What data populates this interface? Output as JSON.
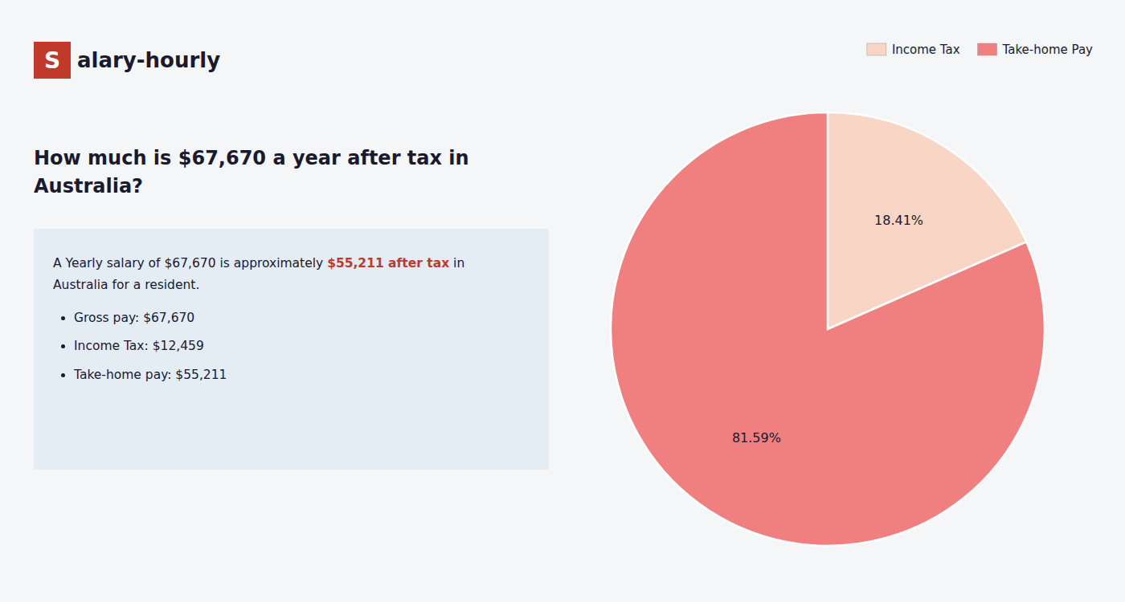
{
  "chart_data": {
    "type": "pie",
    "title": "How much is $67,670 a year after tax in Australia?",
    "annotations": [
      "S",
      "alary-hourly",
      "A Yearly salary of $67,670 is approximately ",
      "$55,211 after tax",
      " in",
      "Australia for a resident.",
      "Gross pay: $67,670",
      "Income Tax: $12,459",
      "Take-home pay: $55,211"
    ],
    "categories": [
      "Income Tax",
      "Take-home Pay"
    ],
    "values": [
      18.41,
      81.59
    ],
    "value_labels": [
      "18.41%",
      "81.59%"
    ],
    "colors": [
      "#f9d5c5",
      "#f08080"
    ],
    "data_labels": true,
    "legend": "upper right"
  }
}
